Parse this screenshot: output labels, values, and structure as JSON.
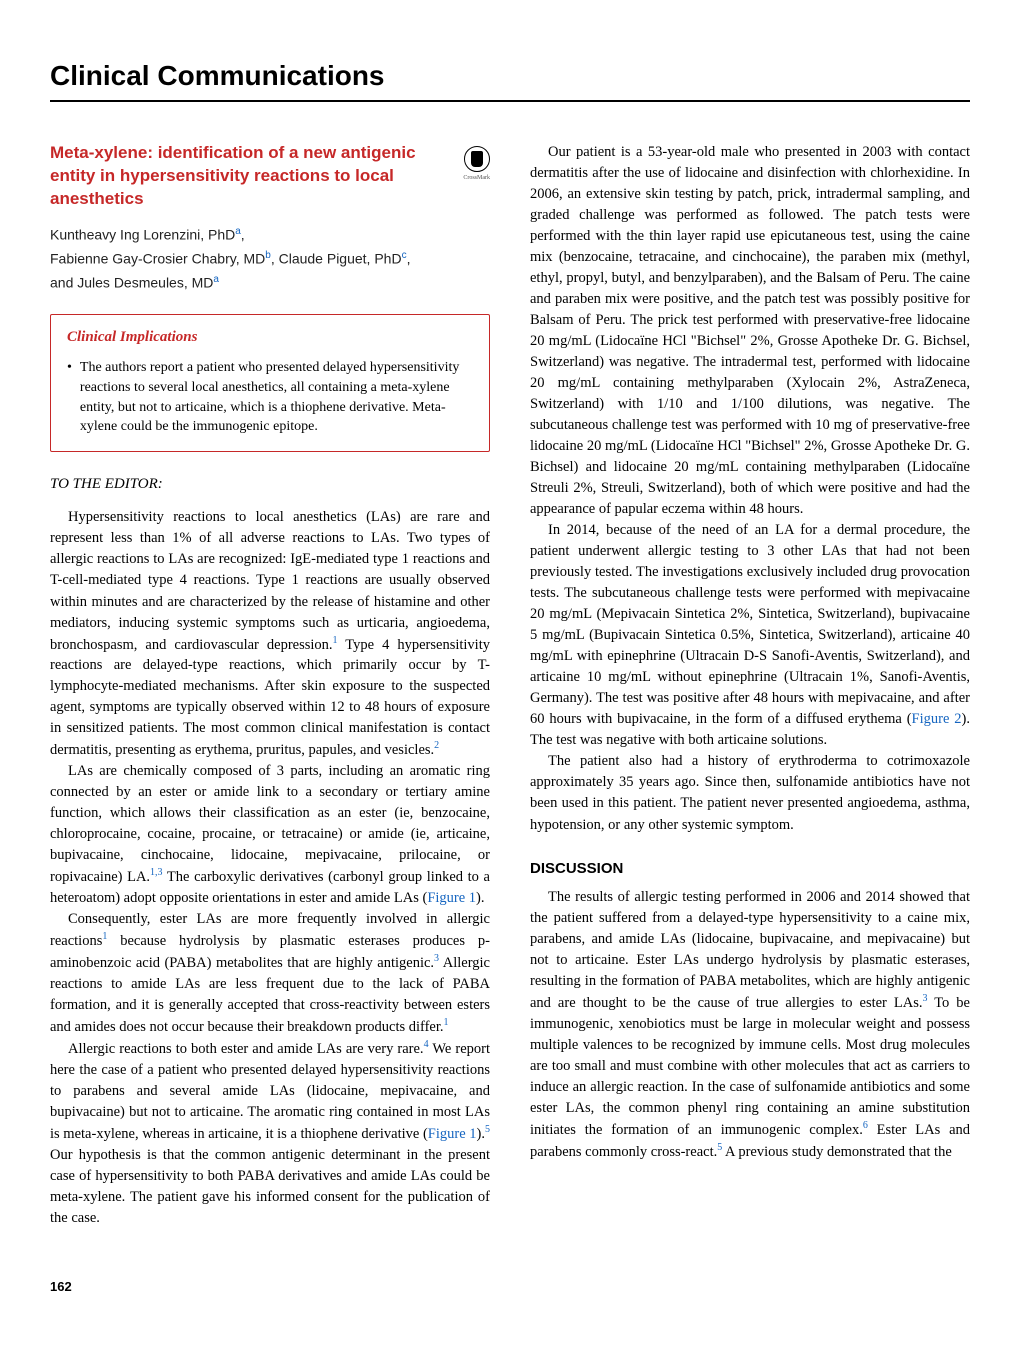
{
  "header": {
    "title": "Clinical Communications"
  },
  "article": {
    "title": "Meta-xylene: identification of a new antigenic entity in hypersensitivity reactions to local anesthetics",
    "crossmark_label": "CrossMark",
    "author_line1": "Kuntheavy Ing Lorenzini, PhD",
    "author_sup1": "a",
    "author_comma1": ",",
    "author_line2_a": "Fabienne Gay-Crosier Chabry, MD",
    "author_sup2": "b",
    "author_line2_b": ", Claude Piguet, PhD",
    "author_sup3": "c",
    "author_comma2": ",",
    "author_line3": "and Jules Desmeules, MD",
    "author_sup4": "a"
  },
  "clinical": {
    "heading": "Clinical Implications",
    "bullet": "•",
    "text": "The authors report a patient who presented delayed hypersensitivity reactions to several local anesthetics, all containing a meta-xylene entity, but not to articaine, which is a thiophene derivative. Meta-xylene could be the immunogenic epitope."
  },
  "editor": {
    "heading": "TO THE EDITOR:"
  },
  "left": {
    "p1a": "Hypersensitivity reactions to local anesthetics (LAs) are rare and represent less than 1% of all adverse reactions to LAs. Two types of allergic reactions to LAs are recognized: IgE-mediated type 1 reactions and T-cell-mediated type 4 reactions. Type 1 reactions are usually observed within minutes and are characterized by the release of histamine and other mediators, inducing systemic symptoms such as urticaria, angioedema, bronchospasm, and cardiovascular depression.",
    "p1_ref1": "1",
    "p1b": " Type 4 hypersensitivity reactions are delayed-type reactions, which primarily occur by T-lymphocyte-mediated mechanisms. After skin exposure to the suspected agent, symptoms are typically observed within 12 to 48 hours of exposure in sensitized patients. The most common clinical manifestation is contact dermatitis, presenting as erythema, pruritus, papules, and vesicles.",
    "p1_ref2": "2",
    "p2a": "LAs are chemically composed of 3 parts, including an aromatic ring connected by an ester or amide link to a secondary or tertiary amine function, which allows their classification as an ester (ie, benzocaine, chloroprocaine, cocaine, procaine, or tetracaine) or amide (ie, articaine, bupivacaine, cinchocaine, lidocaine, mepivacaine, prilocaine, or ropivacaine) LA.",
    "p2_ref1": "1,3",
    "p2b": " The carboxylic derivatives (carbonyl group linked to a heteroatom) adopt opposite orientations in ester and amide LAs (",
    "p2_fig": "Figure 1",
    "p2c": ").",
    "p3a": "Consequently, ester LAs are more frequently involved in allergic reactions",
    "p3_ref1": "1",
    "p3b": " because hydrolysis by plasmatic esterases produces p-aminobenzoic acid (PABA) metabolites that are highly antigenic.",
    "p3_ref2": "3",
    "p3c": " Allergic reactions to amide LAs are less frequent due to the lack of PABA formation, and it is generally accepted that cross-reactivity between esters and amides does not occur because their breakdown products differ.",
    "p3_ref3": "1",
    "p4a": "Allergic reactions to both ester and amide LAs are very rare.",
    "p4_ref1": "4",
    "p4b": " We report here the case of a patient who presented delayed hypersensitivity reactions to parabens and several amide LAs (lidocaine, mepivacaine, and bupivacaine) but not to articaine. The aromatic ring contained in most LAs is meta-xylene, whereas in articaine, it is a thiophene derivative (",
    "p4_fig": "Figure 1",
    "p4c": ").",
    "p4_ref2": "5",
    "p4d": " Our hypothesis is that the common antigenic determinant in the present case of hypersensitivity to both PABA derivatives and amide LAs could be meta-xylene. The patient gave his informed consent for the publication of the case."
  },
  "right": {
    "p1": "Our patient is a 53-year-old male who presented in 2003 with contact dermatitis after the use of lidocaine and disinfection with chlorhexidine. In 2006, an extensive skin testing by patch, prick, intradermal sampling, and graded challenge was performed as followed. The patch tests were performed with the thin layer rapid use epicutaneous test, using the caine mix (benzocaine, tetracaine, and cinchocaine), the paraben mix (methyl, ethyl, propyl, butyl, and benzylparaben), and the Balsam of Peru. The caine and paraben mix were positive, and the patch test was possibly positive for Balsam of Peru. The prick test performed with preservative-free lidocaine 20 mg/mL (Lidocaïne HCl \"Bichsel\" 2%, Grosse Apotheke Dr. G. Bichsel, Switzerland) was negative. The intradermal test, performed with lidocaine 20 mg/mL containing methylparaben (Xylocain 2%, AstraZeneca, Switzerland) with 1/10 and 1/100 dilutions, was negative. The subcutaneous challenge test was performed with 10 mg of preservative-free lidocaine 20 mg/mL (Lidocaïne HCl \"Bichsel\" 2%, Grosse Apotheke Dr. G. Bichsel) and lidocaine 20 mg/mL containing methylparaben (Lidocaïne Streuli 2%, Streuli, Switzerland), both of which were positive and had the appearance of papular eczema within 48 hours.",
    "p2a": "In 2014, because of the need of an LA for a dermal procedure, the patient underwent allergic testing to 3 other LAs that had not been previously tested. The investigations exclusively included drug provocation tests. The subcutaneous challenge tests were performed with mepivacaine 20 mg/mL (Mepivacain Sintetica 2%, Sintetica, Switzerland), bupivacaine 5 mg/mL (Bupivacain Sintetica 0.5%, Sintetica, Switzerland), articaine 40 mg/mL with epinephrine (Ultracain D-S Sanofi-Aventis, Switzerland), and articaine 10 mg/mL without epinephrine (Ultracain 1%, Sanofi-Aventis, Germany). The test was positive after 48 hours with mepivacaine, and after 60 hours with bupivacaine, in the form of a diffused erythema (",
    "p2_fig": "Figure 2",
    "p2b": "). The test was negative with both articaine solutions.",
    "p3": "The patient also had a history of erythroderma to cotrimoxazole approximately 35 years ago. Since then, sulfonamide antibiotics have not been used in this patient. The patient never presented angioedema, asthma, hypotension, or any other systemic symptom."
  },
  "discussion": {
    "heading": "DISCUSSION",
    "p1a": "The results of allergic testing performed in 2006 and 2014 showed that the patient suffered from a delayed-type hypersensitivity to a caine mix, parabens, and amide LAs (lidocaine, bupivacaine, and mepivacaine) but not to articaine. Ester LAs undergo hydrolysis by plasmatic esterases, resulting in the formation of PABA metabolites, which are highly antigenic and are thought to be the cause of true allergies to ester LAs.",
    "p1_ref1": "3",
    "p1b": " To be immunogenic, xenobiotics must be large in molecular weight and possess multiple valences to be recognized by immune cells. Most drug molecules are too small and must combine with other molecules that act as carriers to induce an allergic reaction. In the case of sulfonamide antibiotics and some ester LAs, the common phenyl ring containing an amine substitution initiates the formation of an immunogenic complex.",
    "p1_ref2": "6",
    "p1c": " Ester LAs and parabens commonly cross-react.",
    "p1_ref3": "5",
    "p1d": " A previous study demonstrated that the"
  },
  "footer": {
    "page_number": "162"
  }
}
